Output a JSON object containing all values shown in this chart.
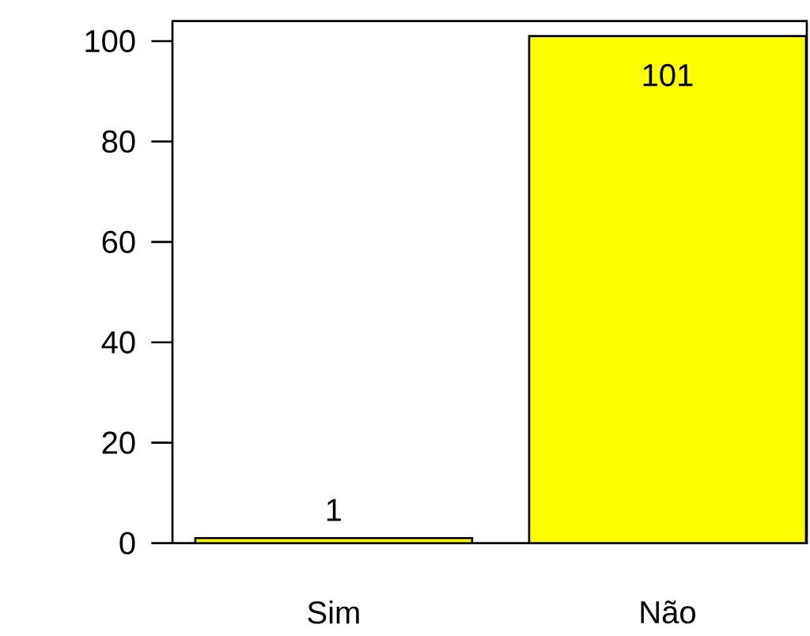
{
  "chart_data": {
    "type": "bar",
    "categories": [
      "Sim",
      "Não"
    ],
    "values": [
      1,
      101
    ],
    "color": "#ffff00",
    "ylim": [
      0,
      104
    ],
    "yticks": [
      0,
      20,
      40,
      60,
      80,
      100
    ],
    "data_labels": true
  }
}
